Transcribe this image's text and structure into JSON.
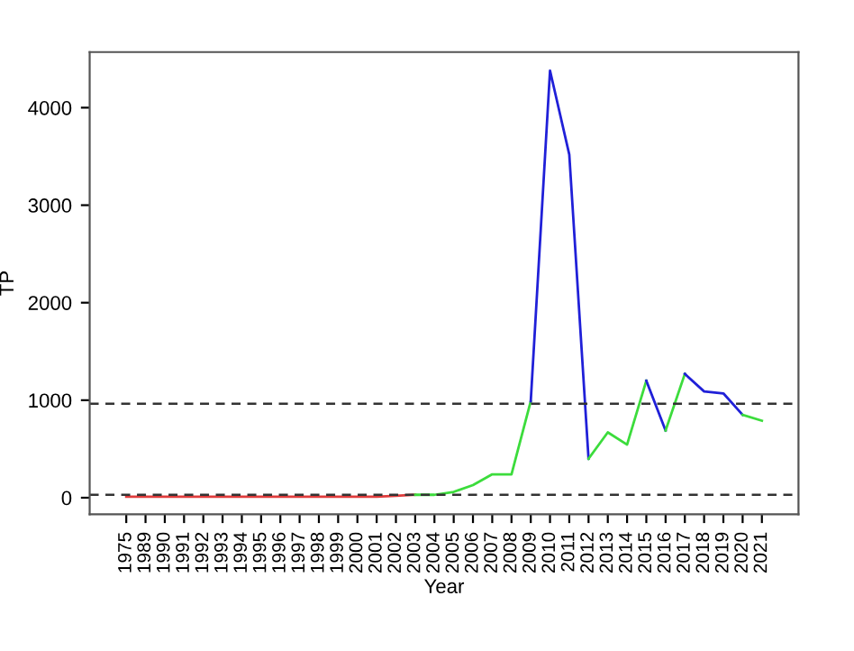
{
  "chart_data": {
    "type": "line",
    "xlabel": "Year",
    "ylabel": "TP",
    "categories": [
      "1975",
      "1989",
      "1990",
      "1991",
      "1992",
      "1993",
      "1994",
      "1995",
      "1996",
      "1997",
      "1998",
      "1999",
      "2000",
      "2001",
      "2002",
      "2003",
      "2004",
      "2005",
      "2006",
      "2007",
      "2008",
      "2009",
      "2010",
      "2011",
      "2012",
      "2013",
      "2014",
      "2015",
      "2016",
      "2017",
      "2018",
      "2019",
      "2020",
      "2021"
    ],
    "series": [
      {
        "color": "#e03c3c",
        "values": [
          10,
          10,
          10,
          10,
          10,
          10,
          10,
          10,
          10,
          10,
          10,
          10,
          10,
          10,
          20,
          30,
          null,
          null,
          null,
          null,
          null,
          null,
          null,
          null,
          null,
          null,
          null,
          null,
          null,
          null,
          null,
          null,
          null,
          null
        ]
      },
      {
        "color": "#3cdc3c",
        "values": [
          null,
          null,
          null,
          null,
          null,
          null,
          null,
          null,
          null,
          null,
          null,
          null,
          null,
          null,
          null,
          30,
          30,
          60,
          130,
          240,
          240,
          990,
          null,
          null,
          null,
          null,
          null,
          null,
          null,
          null,
          null,
          null,
          null,
          null
        ]
      },
      {
        "color": "#2020d8",
        "values": [
          null,
          null,
          null,
          null,
          null,
          null,
          null,
          null,
          null,
          null,
          null,
          null,
          null,
          null,
          null,
          null,
          null,
          null,
          null,
          null,
          null,
          990,
          4380,
          3520,
          400,
          null,
          null,
          null,
          null,
          null,
          null,
          null,
          null,
          null
        ]
      },
      {
        "color": "#3cdc3c",
        "values": [
          null,
          null,
          null,
          null,
          null,
          null,
          null,
          null,
          null,
          null,
          null,
          null,
          null,
          null,
          null,
          null,
          null,
          null,
          null,
          null,
          null,
          null,
          null,
          null,
          400,
          670,
          545,
          1200,
          null,
          null,
          null,
          null,
          null,
          null
        ]
      },
      {
        "color": "#2020d8",
        "values": [
          null,
          null,
          null,
          null,
          null,
          null,
          null,
          null,
          null,
          null,
          null,
          null,
          null,
          null,
          null,
          null,
          null,
          null,
          null,
          null,
          null,
          null,
          null,
          null,
          null,
          null,
          null,
          1200,
          690,
          null,
          null,
          null,
          null,
          null
        ]
      },
      {
        "color": "#3cdc3c",
        "values": [
          null,
          null,
          null,
          null,
          null,
          null,
          null,
          null,
          null,
          null,
          null,
          null,
          null,
          null,
          null,
          null,
          null,
          null,
          null,
          null,
          null,
          null,
          null,
          null,
          null,
          null,
          null,
          null,
          690,
          1270,
          null,
          null,
          null,
          null
        ]
      },
      {
        "color": "#2020d8",
        "values": [
          null,
          null,
          null,
          null,
          null,
          null,
          null,
          null,
          null,
          null,
          null,
          null,
          null,
          null,
          null,
          null,
          null,
          null,
          null,
          null,
          null,
          null,
          null,
          null,
          null,
          null,
          null,
          null,
          null,
          1270,
          1090,
          1070,
          850,
          null
        ]
      },
      {
        "color": "#3cdc3c",
        "values": [
          null,
          null,
          null,
          null,
          null,
          null,
          null,
          null,
          null,
          null,
          null,
          null,
          null,
          null,
          null,
          null,
          null,
          null,
          null,
          null,
          null,
          null,
          null,
          null,
          null,
          null,
          null,
          null,
          null,
          null,
          null,
          null,
          850,
          790
        ]
      }
    ],
    "ylim": [
      -170,
      4570
    ],
    "yticks": [
      0,
      1000,
      2000,
      3000,
      4000
    ],
    "ref_lines": [
      {
        "axis": "y",
        "value": 965,
        "color": "#333333",
        "line_style": "dashed"
      },
      {
        "axis": "y",
        "value": 30,
        "color": "#333333",
        "line_style": "dashed"
      }
    ],
    "grid": false,
    "legend": false,
    "marker": "none",
    "line_style": "solid"
  }
}
